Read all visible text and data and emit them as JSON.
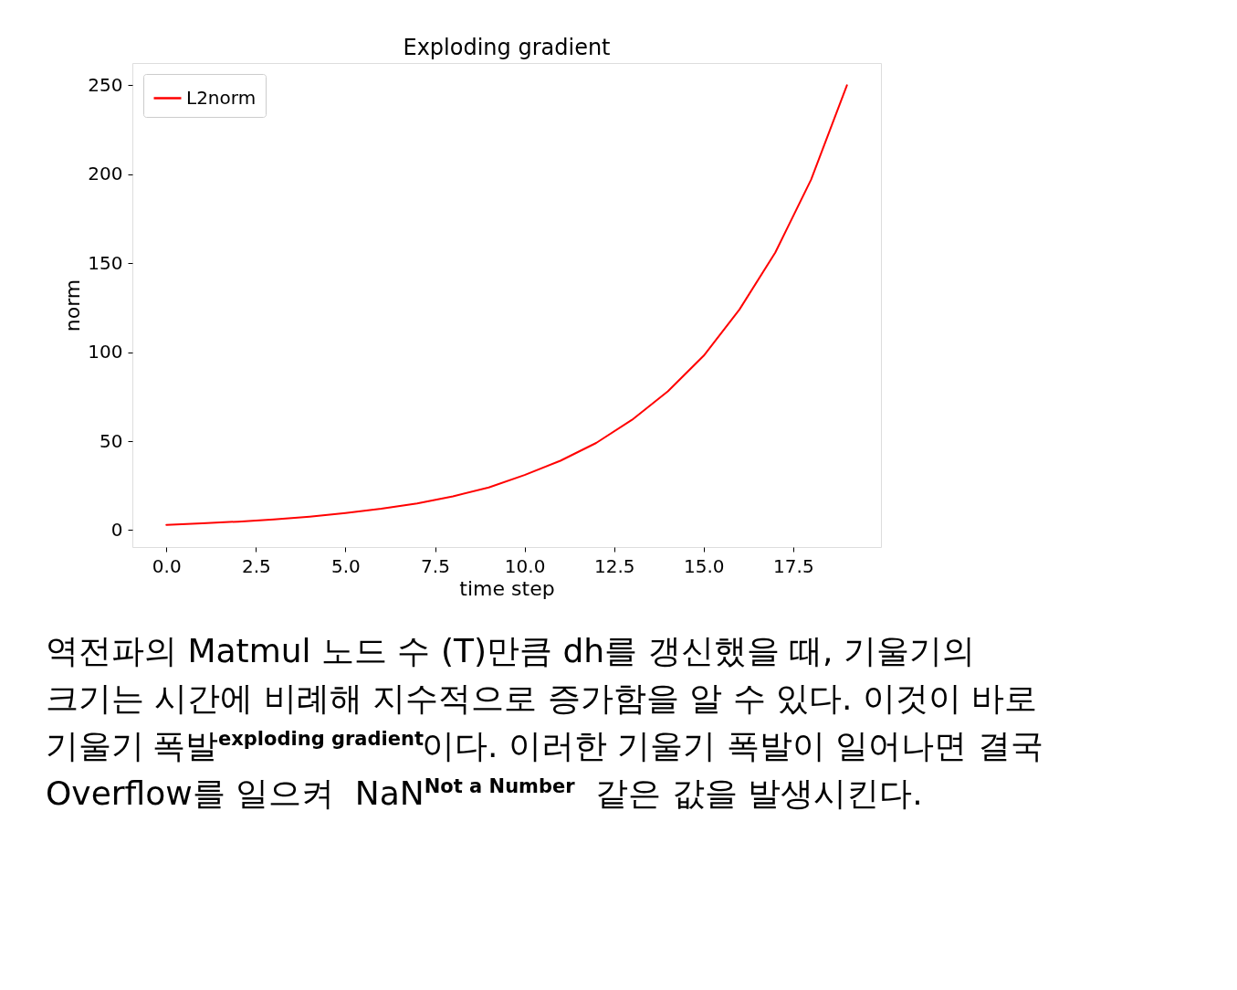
{
  "chart_data": {
    "type": "line",
    "title": "Exploding gradient",
    "xlabel": "time step",
    "ylabel": "norm",
    "x": [
      0,
      1,
      2,
      3,
      4,
      5,
      6,
      7,
      8,
      9,
      10,
      11,
      12,
      13,
      14,
      15,
      16,
      17,
      18,
      19
    ],
    "series": [
      {
        "name": "L2norm",
        "color": "#ff0000",
        "values": [
          3,
          3.8,
          4.8,
          6,
          7.6,
          9.6,
          12,
          15,
          19,
          24,
          31,
          39,
          49,
          62,
          78,
          98,
          124,
          156,
          197,
          250
        ]
      }
    ],
    "xlim": [
      -0.95,
      19.95
    ],
    "ylim": [
      -9.5,
      262.5
    ],
    "xticks": [
      {
        "value": 0,
        "label": "0.0"
      },
      {
        "value": 2.5,
        "label": "2.5"
      },
      {
        "value": 5,
        "label": "5.0"
      },
      {
        "value": 7.5,
        "label": "7.5"
      },
      {
        "value": 10,
        "label": "10.0"
      },
      {
        "value": 12.5,
        "label": "12.5"
      },
      {
        "value": 15,
        "label": "15.0"
      },
      {
        "value": 17.5,
        "label": "17.5"
      }
    ],
    "yticks": [
      0,
      50,
      100,
      150,
      200,
      250
    ],
    "grid": false,
    "legend": "top left",
    "marker": "none",
    "line_style": "solid",
    "annotations": [
      "역전파의 Matmul 노드 수 (T)만큼 dh를 갱신했을 때, 기울기의 크기는 시간에 비례해 지수적으로 증가함을 알 수 있다. 이것이 바로 기울기 폭발$^{exploding gradient}$이다. 이러한 기울기 폭발이 일어나면 결국 Overflow를 일으켜 NaN$^{Not a Number}$ 같은 값을 발생시킨다."
    ]
  }
}
